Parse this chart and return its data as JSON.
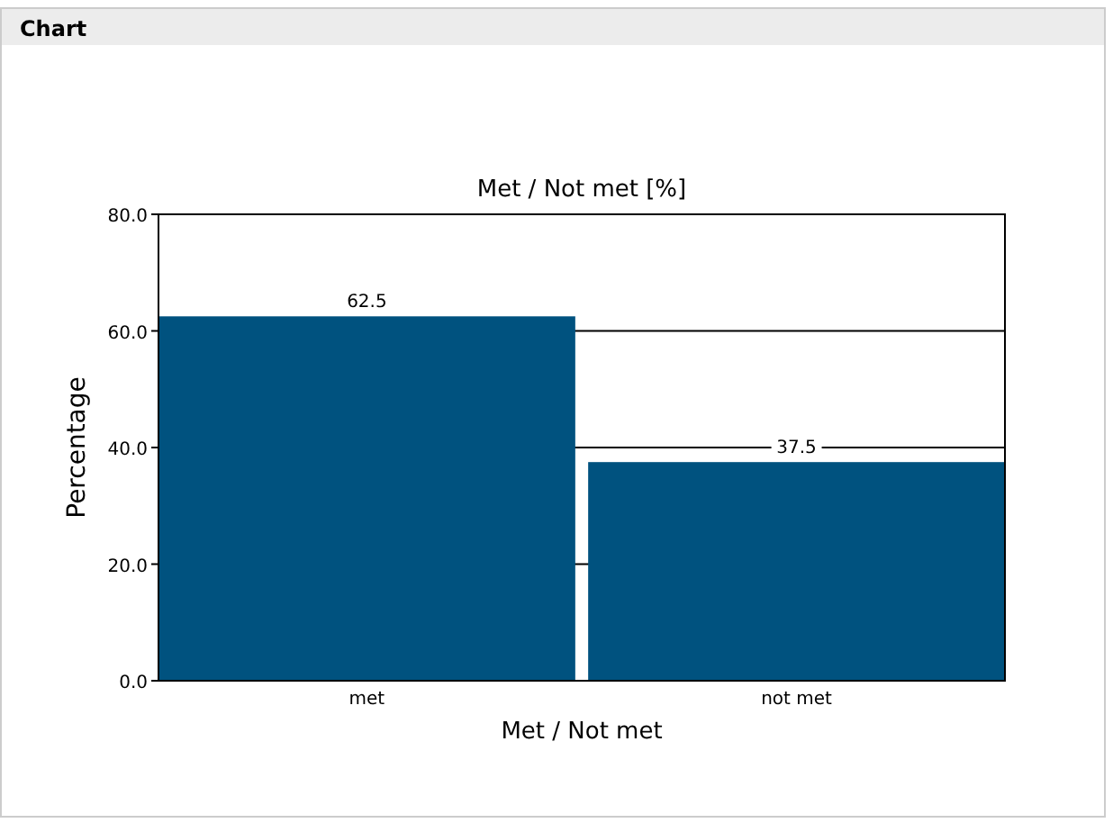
{
  "chart_data": {
    "type": "bar",
    "title": "Met / Not met [%]",
    "xlabel": "Met / Not met",
    "ylabel": "Percentage",
    "annotations": [
      "Chart"
    ],
    "categories": [
      "met",
      "not met"
    ],
    "values": [
      62.5,
      37.5
    ],
    "color": "#00527f",
    "ylim": [
      0,
      80
    ],
    "yticks": [
      {
        "value": 0,
        "label": "0.0"
      },
      {
        "value": 20,
        "label": "20.0"
      },
      {
        "value": 40,
        "label": "40.0"
      },
      {
        "value": 60,
        "label": "60.0"
      },
      {
        "value": 80,
        "label": "80.0"
      }
    ],
    "grid": "y",
    "data_labels": true
  }
}
